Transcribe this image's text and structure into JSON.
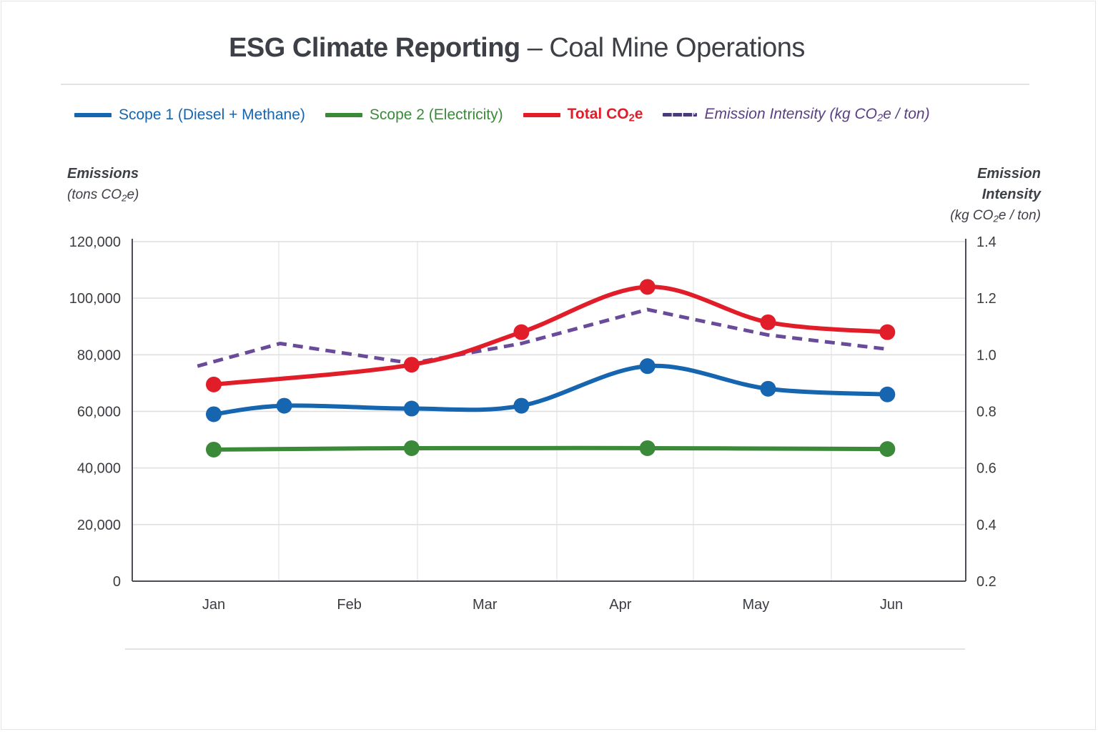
{
  "title": {
    "bold": "ESG Climate Reporting",
    "rest": " – Coal Mine Operations"
  },
  "legend": [
    {
      "key": "scope1",
      "label": "Scope 1 (Diesel + Methane)",
      "color": "#1565b0",
      "style": "solid"
    },
    {
      "key": "scope2",
      "label": "Scope 2 (Electricity)",
      "color": "#3b8a3a",
      "style": "solid"
    },
    {
      "key": "total",
      "label_pre": "Total CO",
      "label_sub": "2",
      "label_post": "e",
      "color": "#e11d2a",
      "style": "solid"
    },
    {
      "key": "intensity",
      "label_pre": "Emission Intensity (kg CO",
      "label_sub": "2",
      "label_post": "e / ton)",
      "color": "#6a4b9a",
      "style": "dashed"
    }
  ],
  "left_axis_title": {
    "main": "Emissions",
    "unit_pre": "(tons CO",
    "unit_sub": "2",
    "unit_post": "e)"
  },
  "right_axis_title": {
    "main_line1": "Emission",
    "main_line2": "Intensity",
    "unit_pre": "(kg CO",
    "unit_sub": "2",
    "unit_post": "e / ton)"
  },
  "chart_data": {
    "type": "line",
    "title": "ESG Climate Reporting – Coal Mine Operations",
    "xlabel": "",
    "ylabel": "Emissions (tons CO2e)",
    "y2label": "Emission Intensity (kg CO2e / ton)",
    "categories": [
      "Jan",
      "Feb",
      "Mar",
      "Apr",
      "May",
      "Jun"
    ],
    "ylim": [
      0,
      120000
    ],
    "y_ticks": [
      0,
      20000,
      40000,
      60000,
      80000,
      100000,
      120000
    ],
    "y_tick_labels": [
      "0",
      "20,000",
      "40,000",
      "60,000",
      "80,000",
      "100,000",
      "120,000"
    ],
    "y2lim": [
      0.2,
      1.4
    ],
    "y2_ticks": [
      0.2,
      0.4,
      0.6,
      0.8,
      1.0,
      1.2,
      1.4
    ],
    "y2_tick_labels": [
      "0.2",
      "0.4",
      "0.6",
      "0.8",
      "1.0",
      "1.2",
      "1.4"
    ],
    "grid": true,
    "legend_position": "top",
    "x_note": "x values are month index (Jan=0 … Jun=5); markers fall between month labels as drawn",
    "series": [
      {
        "name": "Scope 1 (Diesel + Methane)",
        "key": "scope1",
        "axis": "left",
        "color": "#1565b0",
        "dashed": false,
        "markers": true,
        "x": [
          0.0,
          0.52,
          1.46,
          2.27,
          3.2,
          4.09,
          4.97
        ],
        "values": [
          59000,
          62000,
          61000,
          62000,
          76000,
          68000,
          66000
        ]
      },
      {
        "name": "Scope 2 (Electricity)",
        "key": "scope2",
        "axis": "left",
        "color": "#3b8a3a",
        "dashed": false,
        "markers": true,
        "x": [
          0.0,
          1.46,
          3.2,
          4.97
        ],
        "values": [
          46500,
          47000,
          47000,
          46700
        ]
      },
      {
        "name": "Total CO2e",
        "key": "total",
        "axis": "left",
        "color": "#e11d2a",
        "dashed": false,
        "markers": true,
        "x": [
          0.0,
          1.46,
          2.27,
          3.2,
          4.09,
          4.97
        ],
        "values": [
          69500,
          76500,
          88000,
          104000,
          91500,
          88000
        ]
      },
      {
        "name": "Emission Intensity (kg CO2e / ton)",
        "key": "intensity",
        "axis": "right",
        "color": "#6a4b9a",
        "dashed": true,
        "markers": false,
        "x": [
          -0.12,
          0.49,
          1.46,
          2.27,
          3.2,
          4.09,
          4.97
        ],
        "values": [
          0.96,
          1.04,
          0.97,
          1.04,
          1.16,
          1.07,
          1.02
        ]
      }
    ]
  }
}
